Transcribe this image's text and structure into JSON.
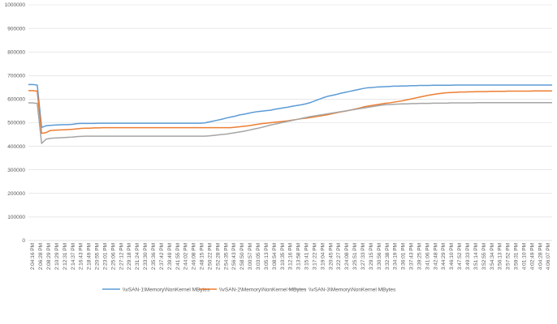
{
  "chart_data": {
    "type": "line",
    "title": "",
    "xlabel": "",
    "ylabel": "",
    "ylim": [
      0,
      1000000
    ],
    "yticks": [
      0,
      100000,
      200000,
      300000,
      400000,
      500000,
      600000,
      700000,
      800000,
      900000,
      1000000
    ],
    "grid": "horizontal",
    "legend_position": "bottom",
    "x_tick_labels": [
      "2:04:16 PM",
      "2:06:28 PM",
      "2:08:29 PM",
      "2:10:29 PM",
      "2:12:31 PM",
      "2:14:37 PM",
      "2:16:43 PM",
      "2:18:49 PM",
      "2:20:55 PM",
      "2:23:01 PM",
      "2:25:06 PM",
      "2:27:12 PM",
      "2:29:18 PM",
      "2:31:24 PM",
      "2:33:30 PM",
      "2:35:36 PM",
      "2:37:42 PM",
      "2:39:49 PM",
      "2:41:55 PM",
      "2:44:02 PM",
      "2:46:08 PM",
      "2:48:15 PM",
      "2:50:22 PM",
      "2:52:28 PM",
      "2:54:35 PM",
      "2:56:43 PM",
      "2:58:50 PM",
      "3:00:57 PM",
      "3:03:05 PM",
      "3:05:13 PM",
      "3:08:54 PM",
      "3:10:35 PM",
      "3:12:16 PM",
      "3:13:58 PM",
      "3:15:41 PM",
      "3:17:22 PM",
      "3:19:04 PM",
      "3:20:45 PM",
      "3:22:27 PM",
      "3:24:08 PM",
      "3:25:51 PM",
      "3:27:33 PM",
      "3:29:15 PM",
      "3:30:56 PM",
      "3:32:38 PM",
      "3:34:19 PM",
      "3:36:01 PM",
      "3:37:43 PM",
      "3:39:25 PM",
      "3:41:06 PM",
      "3:42:48 PM",
      "3:44:29 PM",
      "3:46:10 PM",
      "3:47:52 PM",
      "3:49:33 PM",
      "3:51:14 PM",
      "3:52:55 PM",
      "3:54:34 PM",
      "3:56:13 PM",
      "3:57:52 PM",
      "3:59:31 PM",
      "4:01:10 PM",
      "4:02:49 PM",
      "4:04:28 PM",
      "4:06:07 PM"
    ],
    "series": [
      {
        "name": "\\\\vSAN-1\\Memory\\NonKernel MBytes",
        "color": "#5B9BD5",
        "values": [
          662000,
          662000,
          660000,
          480000,
          487000,
          489000,
          490000,
          491000,
          492000,
          492000,
          493000,
          496000,
          497000,
          497000,
          497000,
          497000,
          498000,
          498000,
          498000,
          498000,
          498000,
          498000,
          498000,
          498000,
          498000,
          498000,
          498000,
          498000,
          498000,
          498000,
          498000,
          498000,
          498000,
          498000,
          498000,
          498000,
          498000,
          498000,
          498000,
          498000,
          499000,
          503000,
          507000,
          511000,
          515000,
          520000,
          524000,
          528000,
          533000,
          536000,
          540000,
          544000,
          547000,
          549000,
          551000,
          553000,
          557000,
          560000,
          563000,
          566000,
          570000,
          573000,
          576000,
          580000,
          585000,
          592000,
          599000,
          606000,
          612000,
          616000,
          620000,
          625000,
          629000,
          633000,
          637000,
          641000,
          645000,
          648000,
          649000,
          651000,
          652000,
          653000,
          654000,
          655000,
          655000,
          656000,
          656000,
          657000,
          657000,
          658000,
          658000,
          658000,
          659000,
          659000,
          659000,
          659000,
          659000,
          660000,
          660000,
          660000,
          660000,
          660000,
          660000,
          660000,
          660000,
          660000,
          660000,
          660000,
          660000,
          660000,
          660000,
          660000,
          660000,
          660000,
          660000,
          660000,
          660000,
          660000,
          660000,
          660000
        ]
      },
      {
        "name": "\\\\vSAN-2\\Memory\\NonKernel MBytes",
        "color": "#ED7D31",
        "values": [
          636000,
          636000,
          634000,
          455000,
          458000,
          467000,
          468000,
          469000,
          470000,
          471000,
          472000,
          474000,
          476000,
          477000,
          477000,
          478000,
          478000,
          479000,
          479000,
          479000,
          479000,
          479000,
          479000,
          479000,
          479000,
          479000,
          479000,
          479000,
          479000,
          479000,
          479000,
          479000,
          479000,
          479000,
          479000,
          479000,
          479000,
          479000,
          479000,
          479000,
          479000,
          479000,
          479000,
          479000,
          479000,
          479000,
          479000,
          481000,
          483000,
          485000,
          487000,
          490000,
          493000,
          496000,
          498000,
          500000,
          502000,
          504000,
          506000,
          508000,
          511000,
          514000,
          517000,
          519000,
          522000,
          525000,
          528000,
          531000,
          534000,
          538000,
          542000,
          546000,
          549000,
          553000,
          557000,
          561000,
          566000,
          570000,
          573000,
          576000,
          579000,
          582000,
          584000,
          587000,
          590000,
          593000,
          597000,
          601000,
          605000,
          609000,
          613000,
          617000,
          620000,
          623000,
          625000,
          627000,
          628000,
          629000,
          630000,
          630000,
          631000,
          631000,
          632000,
          632000,
          632000,
          633000,
          633000,
          633000,
          633000,
          634000,
          634000,
          634000,
          634000,
          634000,
          634000,
          635000,
          635000,
          635000,
          635000,
          635000
        ]
      },
      {
        "name": "\\\\vSAN-3\\Memory\\NonKernel MBytes",
        "color": "#A5A5A5",
        "values": [
          584000,
          584000,
          582000,
          412000,
          430000,
          434000,
          435000,
          436000,
          437000,
          438000,
          439000,
          441000,
          442000,
          443000,
          443000,
          443000,
          443000,
          443000,
          443000,
          443000,
          443000,
          443000,
          443000,
          443000,
          443000,
          443000,
          443000,
          443000,
          443000,
          443000,
          443000,
          443000,
          443000,
          443000,
          443000,
          443000,
          443000,
          443000,
          443000,
          443000,
          443000,
          444000,
          446000,
          448000,
          450000,
          452000,
          455000,
          458000,
          461000,
          464000,
          468000,
          472000,
          476000,
          480000,
          485000,
          490000,
          494000,
          498000,
          502000,
          506000,
          510000,
          514000,
          518000,
          522000,
          526000,
          529000,
          532000,
          535000,
          538000,
          541000,
          544000,
          547000,
          550000,
          553000,
          556000,
          559000,
          562000,
          565000,
          568000,
          571000,
          574000,
          576000,
          577000,
          578000,
          579000,
          580000,
          580000,
          581000,
          581000,
          582000,
          582000,
          582000,
          583000,
          583000,
          583000,
          583000,
          584000,
          584000,
          584000,
          584000,
          584000,
          584000,
          585000,
          585000,
          585000,
          585000,
          585000,
          585000,
          585000,
          585000,
          585000,
          585000,
          585000,
          585000,
          585000,
          585000,
          585000,
          585000,
          585000,
          585000
        ]
      }
    ]
  }
}
